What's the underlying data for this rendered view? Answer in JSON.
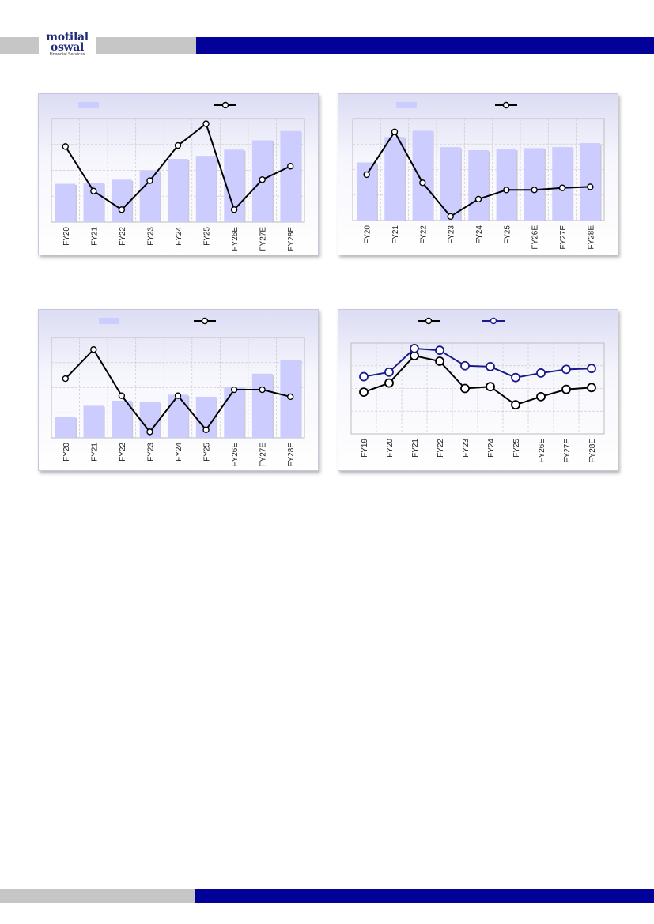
{
  "header": {
    "logo_line1": "motilal",
    "logo_line2": "oswal",
    "logo_line3": "Financial Services"
  },
  "chart_data": [
    {
      "type": "bar",
      "categories": [
        "FY20",
        "FY21",
        "FY22",
        "FY23",
        "FY24",
        "FY25",
        "FY26E",
        "FY27E",
        "FY28E"
      ],
      "series": [
        {
          "kind": "bar",
          "values": [
            37,
            38,
            41,
            50,
            61,
            64,
            70,
            79,
            88
          ],
          "color": "#ccccff"
        },
        {
          "kind": "line",
          "values": [
            73,
            30,
            12,
            40,
            74,
            95,
            12,
            41,
            54
          ],
          "color": "#000000"
        }
      ],
      "ylim": [
        0,
        100
      ],
      "legend": "top",
      "grid": true
    },
    {
      "type": "bar",
      "categories": [
        "FY20",
        "FY21",
        "FY22",
        "FY23",
        "FY24",
        "FY25",
        "FY26E",
        "FY27E",
        "FY28E"
      ],
      "series": [
        {
          "kind": "bar",
          "values": [
            57,
            82,
            88,
            72,
            69,
            70,
            71,
            72,
            76
          ],
          "color": "#ccccff"
        },
        {
          "kind": "line",
          "values": [
            45,
            87,
            37,
            4,
            21,
            30,
            30,
            32,
            33
          ],
          "color": "#000000"
        }
      ],
      "ylim": [
        0,
        100
      ],
      "legend": "top",
      "grid": true
    },
    {
      "type": "bar",
      "categories": [
        "FY20",
        "FY21",
        "FY22",
        "FY23",
        "FY24",
        "FY25",
        "FY26E",
        "FY27E",
        "FY28E"
      ],
      "series": [
        {
          "kind": "bar",
          "values": [
            21,
            32,
            37,
            36,
            43,
            41,
            51,
            64,
            78
          ],
          "color": "#ccccff"
        },
        {
          "kind": "line",
          "values": [
            59,
            88,
            42,
            6,
            42,
            8,
            48,
            48,
            41
          ],
          "color": "#000000"
        }
      ],
      "ylim": [
        0,
        100
      ],
      "legend": "top",
      "grid": true
    },
    {
      "type": "line",
      "categories": [
        "FY19",
        "FY20",
        "FY21",
        "FY22",
        "FY23",
        "FY24",
        "FY25",
        "FY26E",
        "FY27E",
        "FY28E"
      ],
      "series": [
        {
          "kind": "line",
          "values": [
            46,
            56,
            86,
            80,
            50,
            52,
            32,
            41,
            49,
            51
          ],
          "color": "#000000"
        },
        {
          "kind": "line",
          "values": [
            63,
            68,
            94,
            92,
            75,
            74,
            62,
            67,
            71,
            72
          ],
          "color": "#1a1a8c"
        }
      ],
      "ylim": [
        0,
        100
      ],
      "legend": "top",
      "grid": true
    }
  ]
}
